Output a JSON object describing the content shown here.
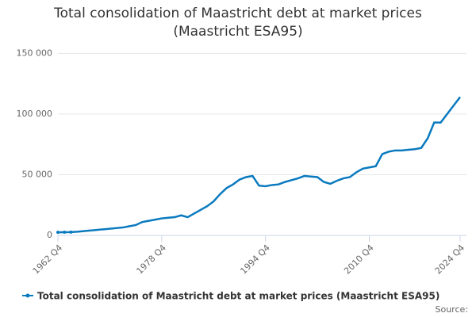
{
  "chart_data": {
    "type": "line",
    "title": "Total consolidation of Maastricht debt at market prices (Maastricht ESA95)",
    "source": "Source:",
    "categories": [
      "1962 Q4",
      null,
      null,
      null,
      null,
      null,
      null,
      null,
      null,
      null,
      null,
      null,
      null,
      null,
      null,
      null,
      "1978 Q4",
      null,
      null,
      null,
      null,
      null,
      null,
      null,
      null,
      null,
      null,
      null,
      null,
      null,
      null,
      null,
      "1994 Q4",
      null,
      null,
      null,
      null,
      null,
      null,
      null,
      null,
      null,
      null,
      null,
      null,
      null,
      null,
      null,
      "2010 Q4",
      null,
      null,
      null,
      null,
      null,
      null,
      null,
      null,
      null,
      null,
      null,
      null,
      null,
      "2024 Q4"
    ],
    "series": [
      {
        "name": "Total consolidation of Maastricht debt at market prices (Maastricht ESA95)",
        "color": "#0a7abf",
        "values": [
          2500,
          2600,
          2700,
          3000,
          3500,
          4000,
          4500,
          5000,
          5500,
          6000,
          6500,
          7500,
          8500,
          11000,
          12000,
          13000,
          14000,
          14500,
          15000,
          16500,
          15000,
          18000,
          21000,
          24000,
          28000,
          34000,
          39000,
          42000,
          46000,
          48000,
          49000,
          41000,
          40500,
          41500,
          42000,
          44000,
          45500,
          47000,
          49000,
          48500,
          48000,
          44000,
          42500,
          45000,
          47000,
          48000,
          52000,
          55000,
          56000,
          57000,
          67000,
          69000,
          70000,
          70000,
          70500,
          71000,
          72000,
          80000,
          93000,
          93000,
          100000,
          107000,
          114000
        ]
      }
    ],
    "ylim": [
      0,
      160000
    ],
    "yticks": [
      0,
      {
        "value": 50000,
        "label": "50 000"
      },
      {
        "value": 100000,
        "label": "100 000"
      },
      {
        "value": 150000,
        "label": "150 000"
      }
    ],
    "grid": true
  }
}
